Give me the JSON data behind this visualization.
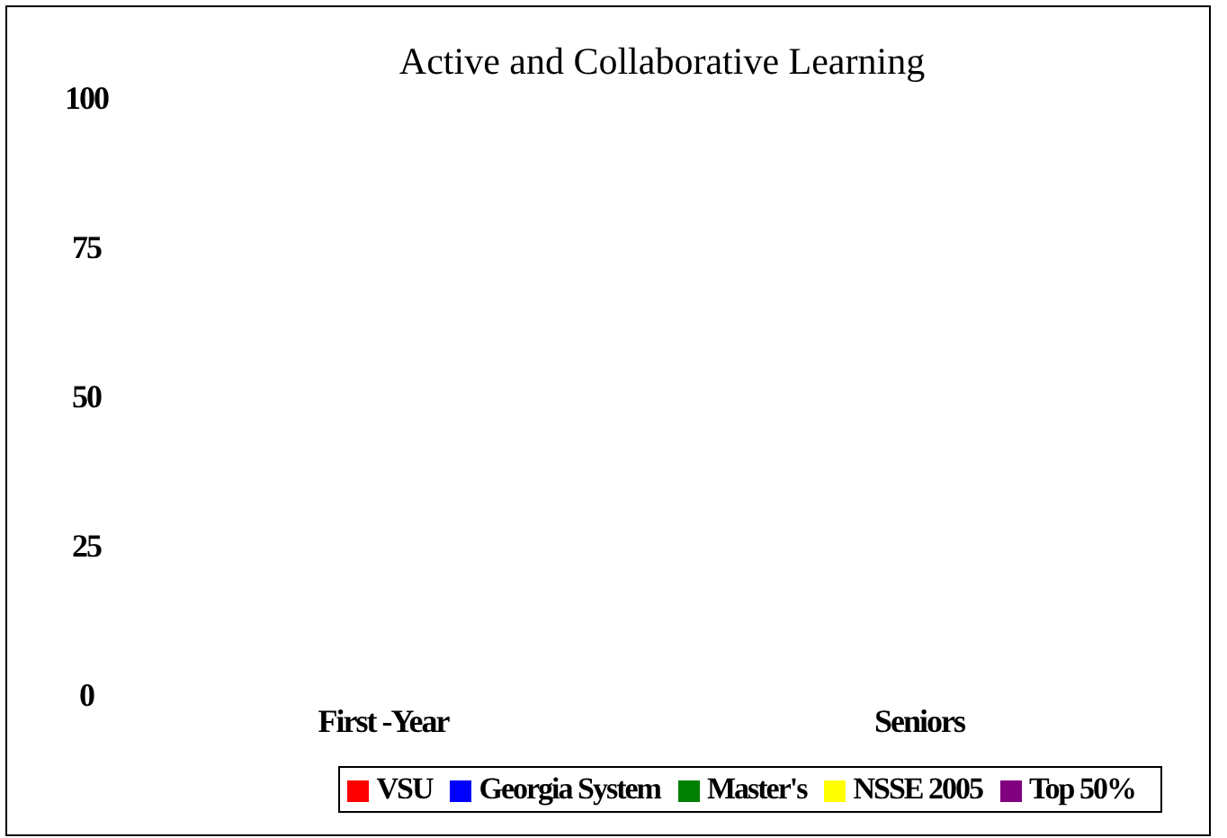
{
  "chart_data": {
    "type": "bar",
    "title": "Active and Collaborative Learning",
    "categories": [
      "First -Year",
      "Seniors"
    ],
    "series": [
      {
        "name": "VSU",
        "color": "#ff0000",
        "values": [
          null,
          null
        ]
      },
      {
        "name": "Georgia System",
        "color": "#0000ff",
        "values": [
          null,
          null
        ]
      },
      {
        "name": "Master's",
        "color": "#008000",
        "values": [
          null,
          null
        ]
      },
      {
        "name": "NSSE 2005",
        "color": "#ffff00",
        "values": [
          null,
          null
        ]
      },
      {
        "name": "Top 50%",
        "color": "#800080",
        "values": [
          null,
          null
        ]
      }
    ],
    "ylim": [
      0,
      100
    ],
    "yticks": [
      0,
      25,
      50,
      75,
      100
    ],
    "grid": false,
    "legend": "bottom"
  }
}
